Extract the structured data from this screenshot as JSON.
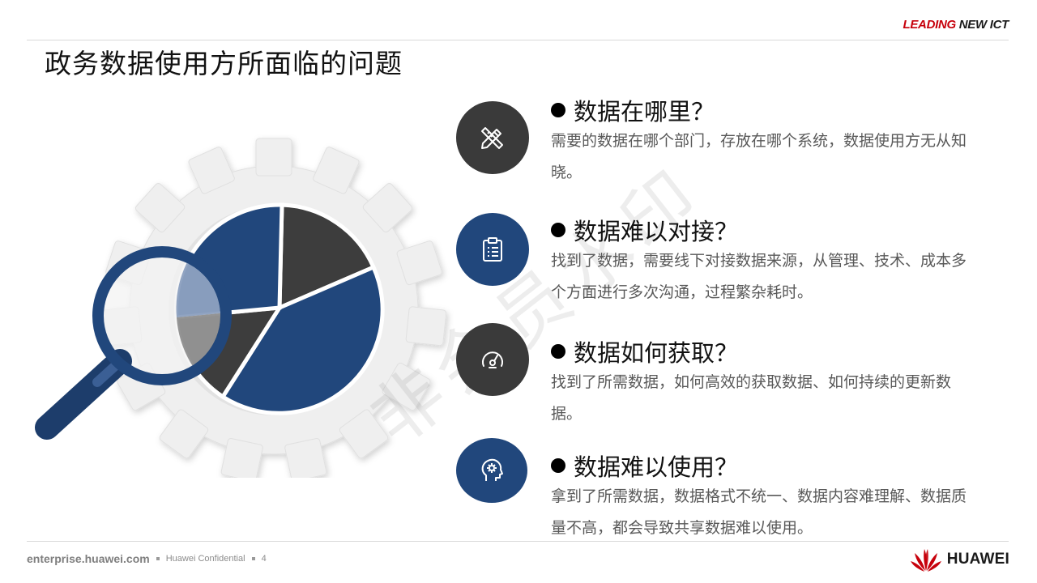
{
  "header": {
    "brand_lead": "LEADING",
    "brand_ict": "NEW ICT",
    "title": "政务数据使用方所面临的问题"
  },
  "watermark": "非会员水印",
  "colors": {
    "accent_red": "#c7000b",
    "navy": "#21477c",
    "dark_gray": "#3a3a3a",
    "gear_gray": "#eeeeee"
  },
  "issues": [
    {
      "icon": "pencil-ruler-icon",
      "style": "dark",
      "title": "数据在哪里？",
      "body": "需要的数据在哪个部门，存放在哪个系统，数据使用方无从知晓。"
    },
    {
      "icon": "clipboard-list-icon",
      "style": "blue",
      "title": "数据难以对接？",
      "body": "找到了数据，需要线下对接数据来源，从管理、技术、成本多个方面进行多次沟通，过程繁杂耗时。"
    },
    {
      "icon": "gauge-icon",
      "style": "dark",
      "title": "数据如何获取？",
      "body": "找到了所需数据，如何高效的获取数据、如何持续的更新数据。"
    },
    {
      "icon": "head-gear-icon",
      "style": "blue",
      "title": "数据难以使用？",
      "body": "拿到了所需数据，数据格式不统一、数据内容难理解、数据质量不高，都会导致共享数据难以使用。"
    }
  ],
  "footer": {
    "site": "enterprise.huawei.com",
    "confidential": "Huawei Confidential",
    "page": "4",
    "logo_text": "HUAWEI"
  }
}
